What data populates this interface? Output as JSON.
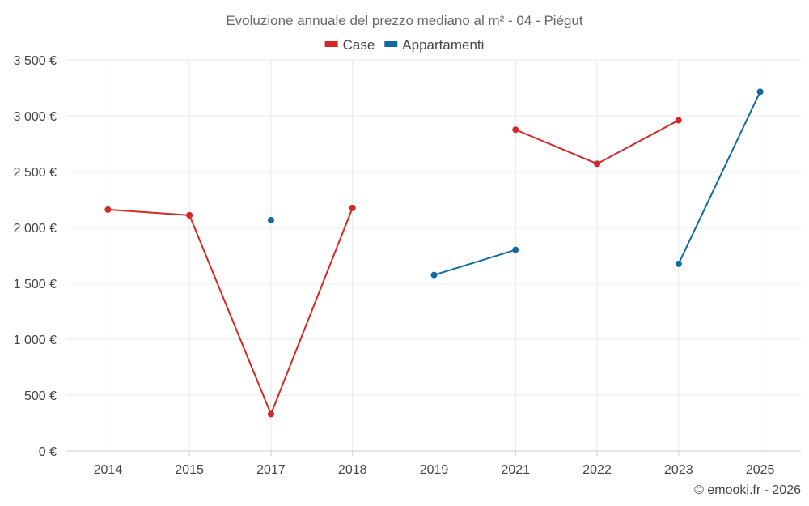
{
  "chart_data": {
    "type": "line",
    "title": "Evoluzione annuale del prezzo mediano al m² - 04 - Piégut",
    "categories": [
      "2014",
      "2015",
      "2017",
      "2018",
      "2019",
      "2021",
      "2022",
      "2023",
      "2025"
    ],
    "ylim": [
      0,
      3500
    ],
    "yticks": [
      0,
      500,
      1000,
      1500,
      2000,
      2500,
      3000,
      3500
    ],
    "ytick_labels": [
      "0 €",
      "500 €",
      "1 000 €",
      "1 500 €",
      "2 000 €",
      "2 500 €",
      "3 000 €",
      "3 500 €"
    ],
    "grid": true,
    "legend_position": "top-center",
    "series": [
      {
        "name": "Case",
        "color": "#d62728",
        "values": [
          2160,
          2110,
          330,
          2175,
          null,
          2875,
          2570,
          2960,
          null
        ]
      },
      {
        "name": "Appartamenti",
        "color": "#0e6aa0",
        "values": [
          null,
          null,
          2065,
          null,
          1575,
          1800,
          null,
          1675,
          3215
        ]
      }
    ],
    "credit": "© emooki.fr - 2026"
  }
}
